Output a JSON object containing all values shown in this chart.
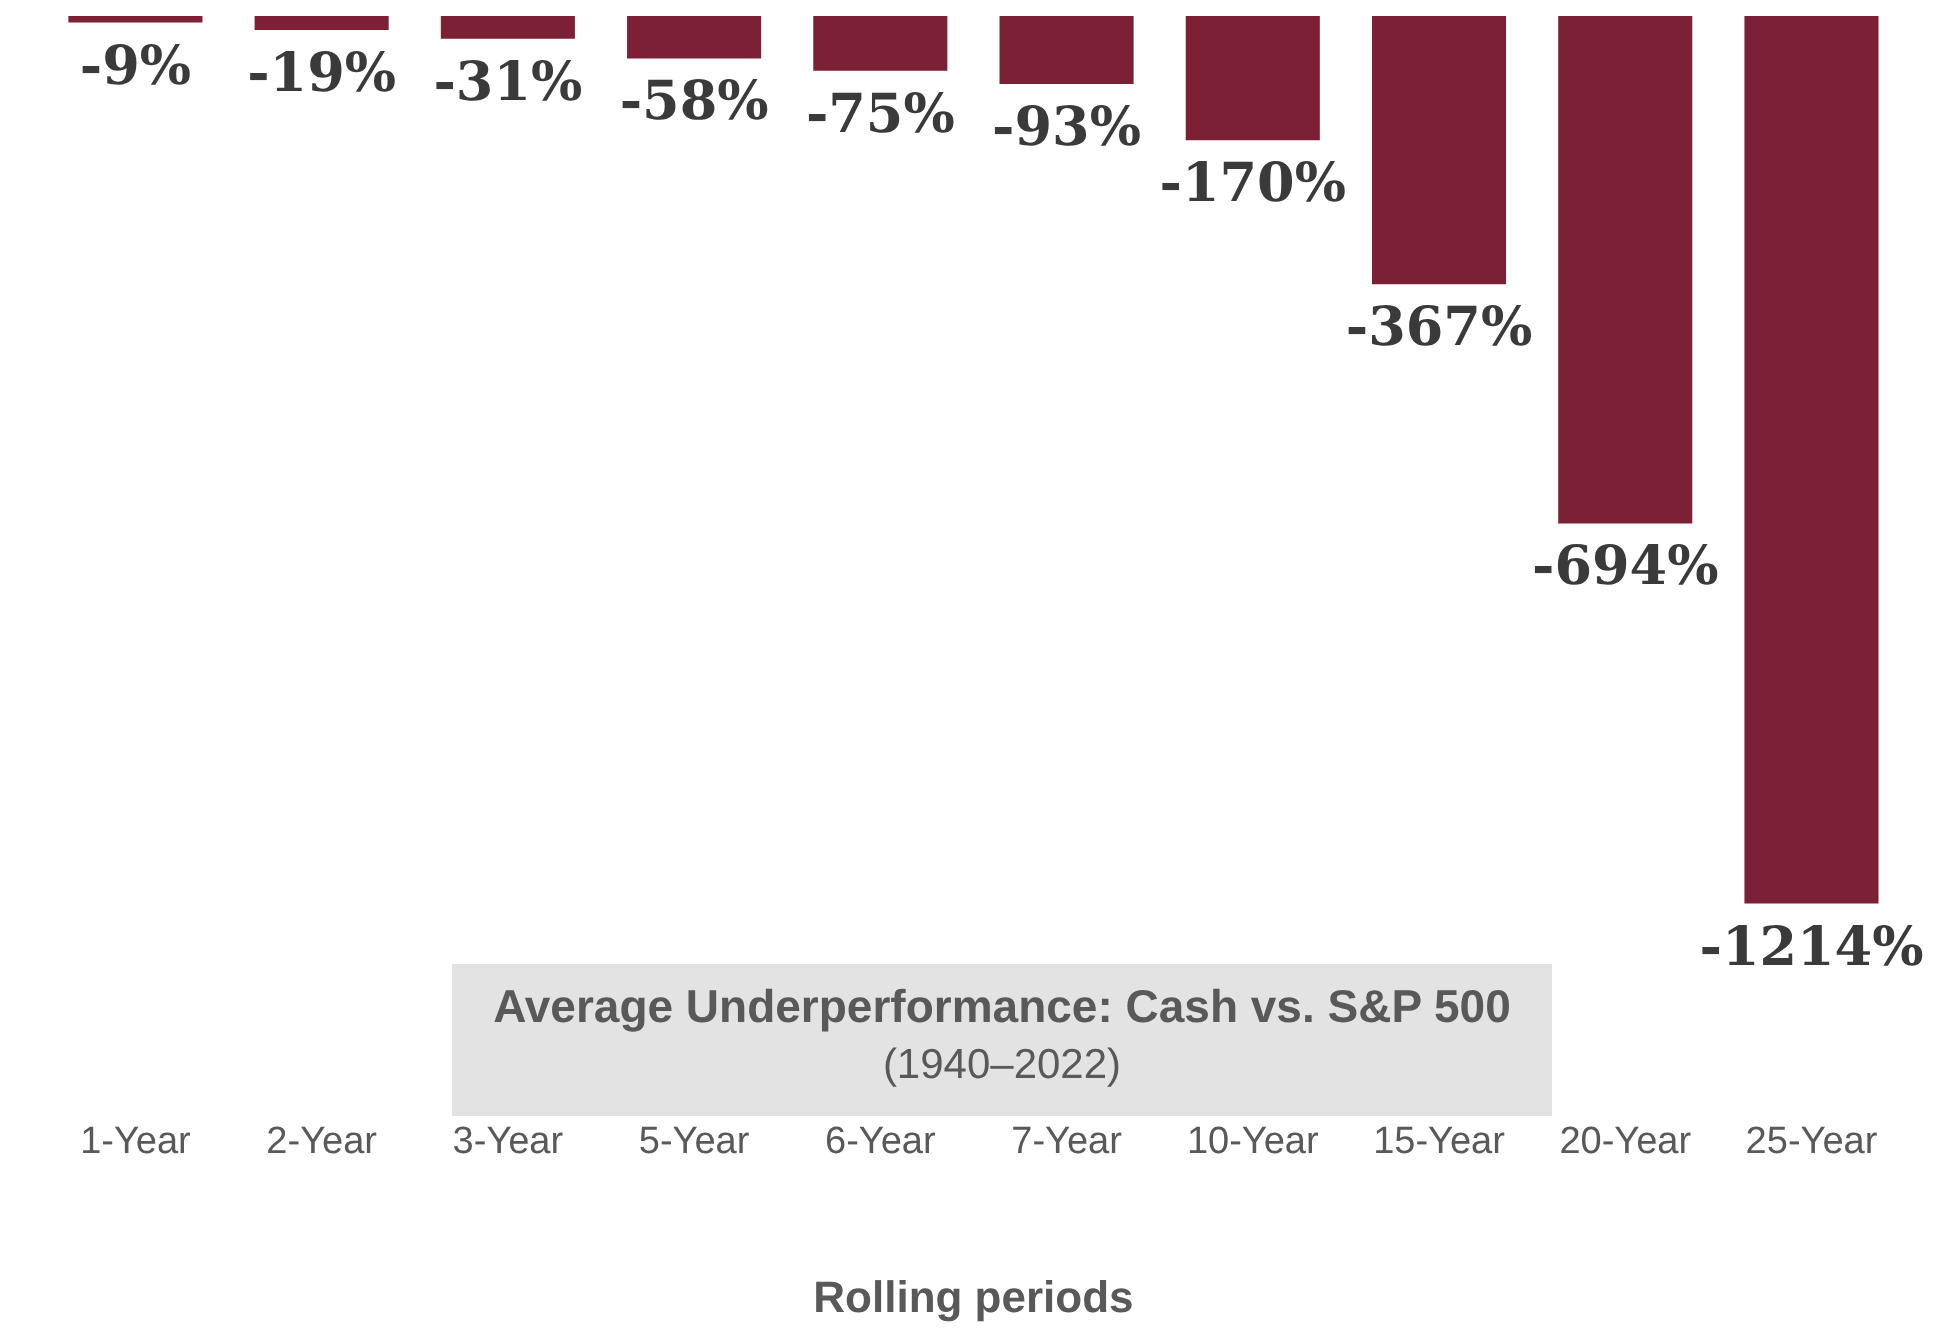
{
  "chart_data": {
    "type": "bar",
    "title": "Average Underperformance: Cash vs. S&P 500",
    "subtitle": "(1940–2022)",
    "xlabel": "Rolling periods",
    "categories": [
      "1-Year",
      "2-Year",
      "3-Year",
      "5-Year",
      "6-Year",
      "7-Year",
      "10-Year",
      "15-Year",
      "20-Year",
      "25-Year"
    ],
    "values": [
      -9,
      -19,
      -31,
      -58,
      -75,
      -93,
      -170,
      -367,
      -694,
      -1214
    ],
    "value_labels": [
      "-9%",
      "-19%",
      "-31%",
      "-58%",
      "-75%",
      "-93%",
      "-170%",
      "-367%",
      "-694%",
      "-1214%"
    ],
    "color": "#7b2035",
    "tick_labels": "x",
    "grid": false,
    "legend": false
  }
}
